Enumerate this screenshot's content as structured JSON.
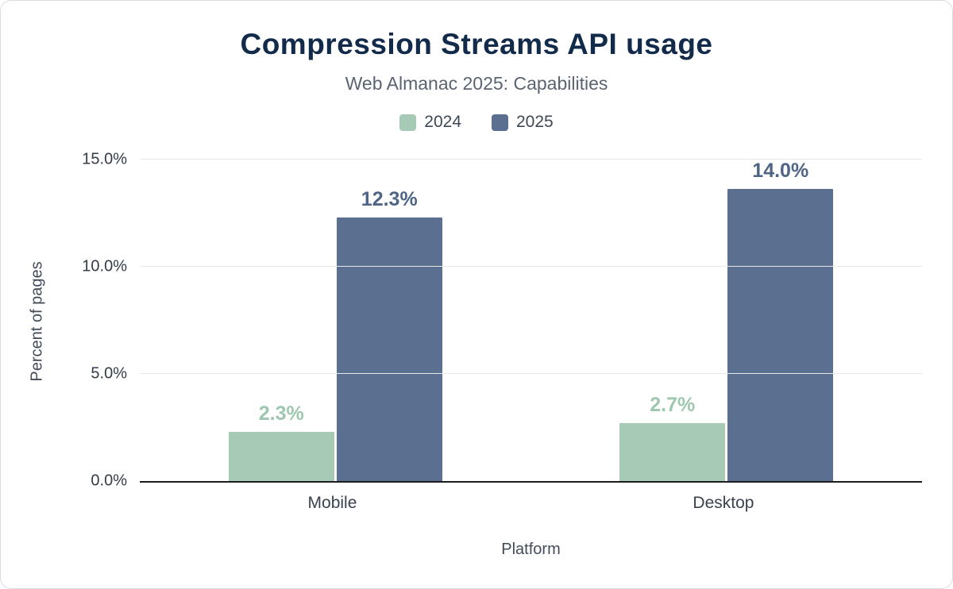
{
  "colors": {
    "title": "#132b4a",
    "subtitle": "#5a6472",
    "gridline": "#e8e8e8",
    "axis_line": "#1c1c1c",
    "tick_text": "#333b47"
  },
  "chart_data": {
    "type": "bar",
    "title": "Compression Streams API usage",
    "subtitle": "Web Almanac 2025: Capabilities",
    "categories": [
      "Mobile",
      "Desktop"
    ],
    "series": [
      {
        "name": "2024",
        "values": [
          2.3,
          2.7
        ],
        "labels": [
          "2.3%",
          "2.7%"
        ],
        "color": "#a6cab6",
        "label_color": "#9ec7af"
      },
      {
        "name": "2025",
        "values": [
          12.3,
          14.0
        ],
        "labels": [
          "12.3%",
          "14.0%"
        ],
        "color": "#5b6f90",
        "label_color": "#4e6586"
      }
    ],
    "xlabel": "Platform",
    "ylabel": "Percent of pages",
    "ylim": [
      0,
      15
    ],
    "yticks": [
      {
        "value": 0,
        "label": "0.0%"
      },
      {
        "value": 5,
        "label": "5.0%"
      },
      {
        "value": 10,
        "label": "10.0%"
      },
      {
        "value": 15,
        "label": "15.0%"
      }
    ],
    "grid": true,
    "legend_position": "top"
  }
}
